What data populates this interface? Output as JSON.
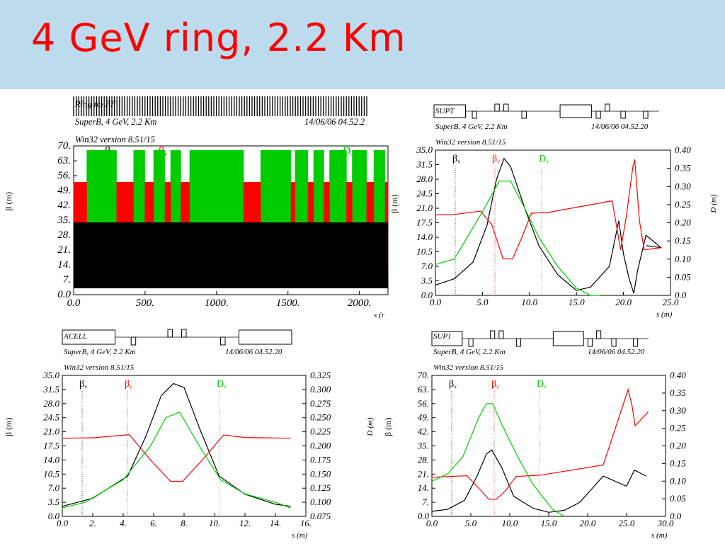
{
  "title": "4 GeV ring, 2.2 Km",
  "colors": {
    "title": "#ff0000",
    "header_band": "#bcdcee",
    "betax": "#000000",
    "betay": "#ff0000",
    "dx": "#00cc00"
  },
  "chart_data": [
    {
      "id": "ring",
      "type": "line",
      "header": [
        "Ring no FF",
        "SuperB, 4 GeV, 2.2 Km",
        "Win32 version 8.51/15"
      ],
      "date": "14/06/06  04.52.2",
      "xlabel": "s (r",
      "ylabel": "β (m)",
      "xlim": [
        0,
        2200
      ],
      "ylim": [
        0,
        70
      ],
      "xticks": [
        "0.0",
        "500.",
        "1000.",
        "1500.",
        "2000.",
        "2"
      ],
      "yticks": [
        "0.0",
        "7.",
        "14.",
        "21.",
        "28.",
        "35.",
        "42.",
        "49.",
        "56.",
        "63.",
        "70."
      ],
      "legend": [
        "βx",
        "βy",
        "Dx"
      ],
      "arcs": [
        [
          90,
          300
        ],
        [
          420,
          500
        ],
        [
          560,
          640
        ],
        [
          680,
          750
        ],
        [
          810,
          1190
        ],
        [
          1310,
          1520
        ],
        [
          1550,
          1640
        ],
        [
          1680,
          1750
        ],
        [
          1790,
          1910
        ],
        [
          1950,
          2050
        ],
        [
          2100,
          2180
        ]
      ],
      "series": [
        {
          "name": "βx",
          "description": "oscillating 3–34 in arcs, peaks to ~58 near 1000 and 2150"
        },
        {
          "name": "βy",
          "description": "oscillating 7–21 in arcs, 7–53 in straights"
        },
        {
          "name": "Dx",
          "description": "oscillating 21–68 in arcs, ~9 in straights"
        }
      ]
    },
    {
      "id": "supt",
      "type": "line",
      "header": [
        "SUPT",
        "SuperB, 4 GeV, 2.2 Km",
        "Win32 version 8.51/15"
      ],
      "date": "14/06/06  04.52.20",
      "xlabel": "s (m)",
      "ylabel": "β (m)",
      "y2label": "D (m)",
      "xlim": [
        0,
        25
      ],
      "ylim": [
        0,
        35
      ],
      "y2lim": [
        0,
        0.4
      ],
      "xticks": [
        "0.0",
        "5.0",
        "10.0",
        "15.0",
        "20.0",
        "25.0"
      ],
      "yticks": [
        "0.0",
        "3.5",
        "7.0",
        "10.5",
        "14.0",
        "17.5",
        "21.0",
        "24.5",
        "28.0",
        "31.5",
        "35.0"
      ],
      "y2ticks": [
        "0.0",
        "0.05",
        "0.10",
        "0.15",
        "0.20",
        "0.25",
        "0.30",
        "0.35",
        "0.40"
      ],
      "legend": [
        "βx",
        "βy",
        "Dx"
      ],
      "series": [
        {
          "name": "βx",
          "axis": "y",
          "points": [
            [
              0,
              2.5
            ],
            [
              2,
              4
            ],
            [
              4,
              8
            ],
            [
              5.5,
              17
            ],
            [
              6.5,
              28
            ],
            [
              7.3,
              33
            ],
            [
              8,
              31
            ],
            [
              9.5,
              21
            ],
            [
              11,
              12
            ],
            [
              13,
              5
            ],
            [
              15,
              1.2
            ],
            [
              16.5,
              2
            ],
            [
              18.5,
              7
            ],
            [
              19.5,
              18
            ],
            [
              20,
              10
            ],
            [
              20.6,
              4
            ],
            [
              21.1,
              0.5
            ],
            [
              21.5,
              6
            ],
            [
              22.4,
              14.5
            ],
            [
              24,
              11.5
            ],
            [
              22.4,
              12
            ]
          ]
        },
        {
          "name": "βy",
          "axis": "y",
          "points": [
            [
              0,
              19.4
            ],
            [
              2,
              19.5
            ],
            [
              4.8,
              20.3
            ],
            [
              6,
              17
            ],
            [
              7.2,
              8.8
            ],
            [
              8.2,
              8.8
            ],
            [
              9.2,
              14
            ],
            [
              10.2,
              19.8
            ],
            [
              12,
              20
            ],
            [
              18.8,
              22.8
            ],
            [
              19.7,
              11
            ],
            [
              20.3,
              19
            ],
            [
              21,
              31
            ],
            [
              21.2,
              32.8
            ],
            [
              21.7,
              18
            ],
            [
              22.2,
              11
            ],
            [
              24,
              11.5
            ]
          ]
        },
        {
          "name": "Dx",
          "axis": "y2",
          "points": [
            [
              0,
              0.085
            ],
            [
              2,
              0.1
            ],
            [
              5,
              0.23
            ],
            [
              6.8,
              0.315
            ],
            [
              8,
              0.315
            ],
            [
              9.5,
              0.24
            ],
            [
              11,
              0.16
            ],
            [
              13,
              0.08
            ],
            [
              15,
              0.02
            ],
            [
              16.5,
              0
            ],
            [
              17.5,
              0
            ]
          ]
        }
      ]
    },
    {
      "id": "acell",
      "type": "line",
      "header": [
        "ACELL",
        "SuperB, 4 GeV, 2.2 Km",
        "Win32 version 8.51/15"
      ],
      "date": "14/06/06  04.52.20",
      "xlabel": "s (m)",
      "ylabel": "β (m)",
      "xlim": [
        0,
        16
      ],
      "ylim": [
        0,
        35
      ],
      "y2lim": [
        0.075,
        0.325
      ],
      "xticks": [
        "0.0",
        "2.",
        "4.",
        "6.",
        "8.",
        "10.",
        "12.",
        "14.",
        "16."
      ],
      "yticks": [
        "0.0",
        "3.5",
        "7.0",
        "10.5",
        "14.0",
        "17.5",
        "21.0",
        "24.5",
        "28.0",
        "31.5",
        "35.0"
      ],
      "y2ticks": [
        "0.075",
        "0.100",
        "0.125",
        "0.150",
        "0.175",
        "0.200",
        "0.225",
        "0.250",
        "0.275",
        "0.300",
        "0.325"
      ],
      "legend": [
        "βx",
        "βy",
        "Dx"
      ],
      "series": [
        {
          "name": "βx",
          "axis": "y",
          "points": [
            [
              0,
              2.5
            ],
            [
              2,
              4.5
            ],
            [
              4.3,
              10
            ],
            [
              5.5,
              20
            ],
            [
              6.5,
              30
            ],
            [
              7.3,
              33
            ],
            [
              8,
              32
            ],
            [
              9,
              22
            ],
            [
              10.3,
              10
            ],
            [
              12,
              5.5
            ],
            [
              14,
              3
            ],
            [
              15,
              2.5
            ]
          ]
        },
        {
          "name": "βy",
          "axis": "y",
          "points": [
            [
              0,
              19.4
            ],
            [
              2,
              19.5
            ],
            [
              4.4,
              20.3
            ],
            [
              5.8,
              14
            ],
            [
              7.1,
              8.7
            ],
            [
              7.9,
              8.7
            ],
            [
              9.2,
              14
            ],
            [
              10.6,
              20.2
            ],
            [
              12,
              19.6
            ],
            [
              15,
              19.4
            ]
          ]
        },
        {
          "name": "Dx",
          "axis": "y2",
          "points": [
            [
              0,
              0.09
            ],
            [
              1.5,
              0.1
            ],
            [
              4,
              0.14
            ],
            [
              5.8,
              0.2
            ],
            [
              6.8,
              0.25
            ],
            [
              7.7,
              0.26
            ],
            [
              9,
              0.2
            ],
            [
              10.4,
              0.14
            ],
            [
              12,
              0.115
            ],
            [
              14,
              0.1
            ],
            [
              15,
              0.09
            ]
          ]
        }
      ]
    },
    {
      "id": "sup1",
      "type": "line",
      "header": [
        "SUP1",
        "SuperB, 4 GeV, 2.2 Km",
        "Win32 version 8.51/15"
      ],
      "date": "14/06/06  04.52.20",
      "xlabel": "s (m)",
      "ylabel": "β (m)",
      "y2label": "D (m)",
      "xlim": [
        0,
        30
      ],
      "ylim": [
        0,
        70
      ],
      "y2lim": [
        0,
        0.4
      ],
      "xticks": [
        "0.0",
        "5.0",
        "10.0",
        "15.0",
        "20.0",
        "25.0",
        "30.0"
      ],
      "yticks": [
        "0.0",
        "7.",
        "14.",
        "21.",
        "28.",
        "35.",
        "42.",
        "49.",
        "56.",
        "63.",
        "70."
      ],
      "y2ticks": [
        "0.0",
        "0.05",
        "0.10",
        "0.15",
        "0.20",
        "0.25",
        "0.30",
        "0.35",
        "0.40"
      ],
      "legend": [
        "βx",
        "βy",
        "Dx"
      ],
      "series": [
        {
          "name": "βx",
          "axis": "y",
          "points": [
            [
              0,
              2.5
            ],
            [
              2,
              3.5
            ],
            [
              4.2,
              8
            ],
            [
              5.8,
              20
            ],
            [
              7,
              31
            ],
            [
              7.7,
              33
            ],
            [
              9,
              24
            ],
            [
              10.5,
              10
            ],
            [
              13,
              4
            ],
            [
              15,
              2
            ],
            [
              17,
              3
            ],
            [
              19,
              7
            ],
            [
              22,
              20
            ],
            [
              25,
              15
            ],
            [
              26,
              23
            ],
            [
              27.5,
              20
            ]
          ]
        },
        {
          "name": "βy",
          "axis": "y",
          "points": [
            [
              0,
              19.4
            ],
            [
              4.5,
              20.2
            ],
            [
              6.5,
              12
            ],
            [
              7.3,
              8.5
            ],
            [
              8.3,
              8.5
            ],
            [
              9.5,
              13
            ],
            [
              10.8,
              19.8
            ],
            [
              14,
              20.5
            ],
            [
              22,
              25.5
            ],
            [
              25.2,
              63
            ],
            [
              25.7,
              55
            ],
            [
              26.1,
              45
            ],
            [
              27.8,
              52
            ]
          ]
        },
        {
          "name": "Dx",
          "axis": "y2",
          "points": [
            [
              0,
              0.1
            ],
            [
              2,
              0.12
            ],
            [
              4,
              0.17
            ],
            [
              6,
              0.28
            ],
            [
              7,
              0.32
            ],
            [
              7.8,
              0.32
            ],
            [
              9,
              0.26
            ],
            [
              11,
              0.17
            ],
            [
              13,
              0.09
            ],
            [
              15.5,
              0.02
            ],
            [
              17,
              0
            ]
          ]
        }
      ]
    }
  ]
}
